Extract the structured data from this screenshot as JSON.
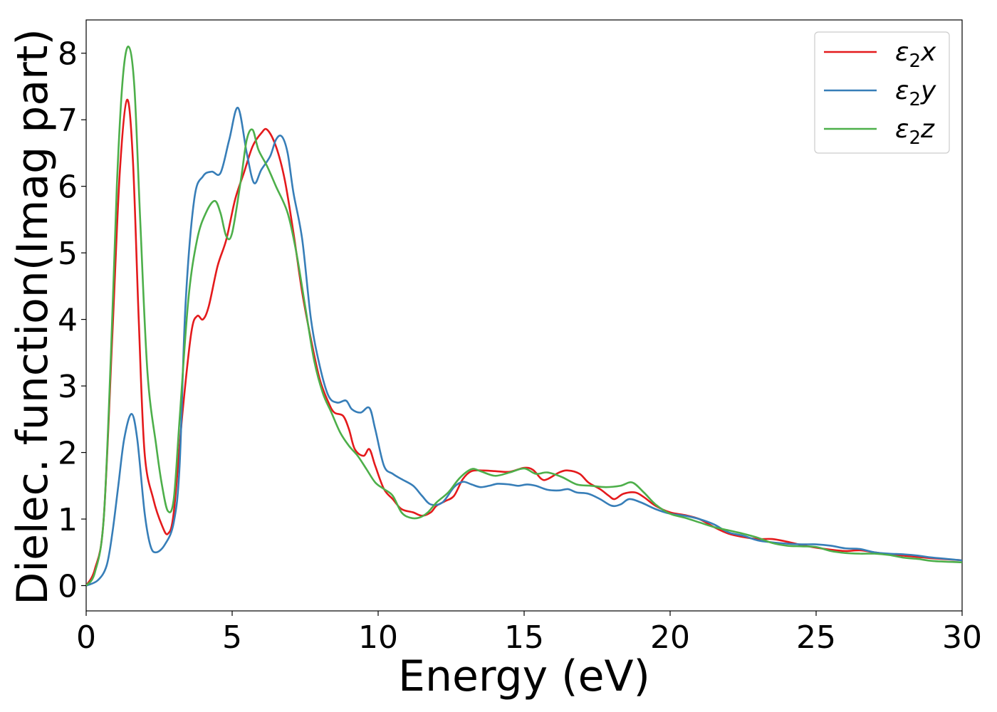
{
  "chart_data": {
    "type": "line",
    "title": "",
    "xlabel": "Energy (eV)",
    "ylabel": "Dielec. function(Imag part)",
    "xlim": [
      0,
      30
    ],
    "ylim": [
      -0.38,
      8.5
    ],
    "xticks": [
      0,
      5,
      10,
      15,
      20,
      25,
      30
    ],
    "yticks": [
      0,
      1,
      2,
      3,
      4,
      5,
      6,
      7,
      8
    ],
    "grid": false,
    "legend": "top-right",
    "series": [
      {
        "name": "ε2x",
        "label_base": "ε",
        "label_sub": "2",
        "label_suffix": "x",
        "color": "#e41a1c",
        "points": [
          [
            0,
            0
          ],
          [
            0.3,
            0.25
          ],
          [
            0.6,
            1.0
          ],
          [
            0.9,
            3.8
          ],
          [
            1.15,
            6.2
          ],
          [
            1.4,
            7.3
          ],
          [
            1.6,
            6.4
          ],
          [
            1.8,
            4.0
          ],
          [
            2.0,
            2.0
          ],
          [
            2.3,
            1.3
          ],
          [
            2.6,
            0.9
          ],
          [
            2.8,
            0.78
          ],
          [
            3.0,
            1.1
          ],
          [
            3.3,
            2.6
          ],
          [
            3.6,
            3.8
          ],
          [
            3.8,
            4.05
          ],
          [
            4.0,
            4.0
          ],
          [
            4.2,
            4.2
          ],
          [
            4.5,
            4.8
          ],
          [
            4.8,
            5.2
          ],
          [
            5.1,
            5.8
          ],
          [
            5.4,
            6.2
          ],
          [
            5.7,
            6.6
          ],
          [
            6.0,
            6.8
          ],
          [
            6.2,
            6.85
          ],
          [
            6.5,
            6.6
          ],
          [
            6.8,
            6.1
          ],
          [
            7.1,
            5.3
          ],
          [
            7.4,
            4.4
          ],
          [
            7.7,
            3.7
          ],
          [
            8.0,
            3.1
          ],
          [
            8.3,
            2.75
          ],
          [
            8.5,
            2.6
          ],
          [
            8.8,
            2.55
          ],
          [
            9.0,
            2.35
          ],
          [
            9.2,
            2.05
          ],
          [
            9.5,
            1.95
          ],
          [
            9.7,
            2.05
          ],
          [
            9.9,
            1.8
          ],
          [
            10.2,
            1.45
          ],
          [
            10.5,
            1.3
          ],
          [
            10.8,
            1.15
          ],
          [
            11.2,
            1.1
          ],
          [
            11.5,
            1.05
          ],
          [
            11.8,
            1.1
          ],
          [
            12.0,
            1.2
          ],
          [
            12.3,
            1.27
          ],
          [
            12.6,
            1.35
          ],
          [
            12.9,
            1.6
          ],
          [
            13.2,
            1.72
          ],
          [
            13.6,
            1.73
          ],
          [
            14.0,
            1.72
          ],
          [
            14.5,
            1.71
          ],
          [
            15.0,
            1.77
          ],
          [
            15.3,
            1.74
          ],
          [
            15.6,
            1.6
          ],
          [
            15.8,
            1.6
          ],
          [
            16.2,
            1.7
          ],
          [
            16.5,
            1.73
          ],
          [
            16.9,
            1.68
          ],
          [
            17.2,
            1.55
          ],
          [
            17.6,
            1.45
          ],
          [
            17.9,
            1.35
          ],
          [
            18.1,
            1.3
          ],
          [
            18.4,
            1.38
          ],
          [
            18.8,
            1.4
          ],
          [
            19.1,
            1.33
          ],
          [
            19.5,
            1.2
          ],
          [
            20.0,
            1.1
          ],
          [
            20.5,
            1.06
          ],
          [
            21.0,
            1.0
          ],
          [
            21.5,
            0.88
          ],
          [
            22.0,
            0.78
          ],
          [
            22.5,
            0.73
          ],
          [
            23.0,
            0.7
          ],
          [
            23.5,
            0.7
          ],
          [
            24.0,
            0.66
          ],
          [
            24.5,
            0.61
          ],
          [
            25.0,
            0.57
          ],
          [
            25.5,
            0.54
          ],
          [
            26.0,
            0.52
          ],
          [
            26.5,
            0.53
          ],
          [
            27.0,
            0.5
          ],
          [
            27.5,
            0.47
          ],
          [
            28.0,
            0.45
          ],
          [
            28.5,
            0.43
          ],
          [
            29.0,
            0.41
          ],
          [
            30.0,
            0.38
          ]
        ]
      },
      {
        "name": "ε2y",
        "label_base": "ε",
        "label_sub": "2",
        "label_suffix": "y",
        "color": "#377eb8",
        "points": [
          [
            0,
            0
          ],
          [
            0.4,
            0.08
          ],
          [
            0.7,
            0.3
          ],
          [
            0.9,
            0.8
          ],
          [
            1.1,
            1.5
          ],
          [
            1.3,
            2.2
          ],
          [
            1.55,
            2.58
          ],
          [
            1.75,
            2.2
          ],
          [
            2.0,
            1.1
          ],
          [
            2.2,
            0.6
          ],
          [
            2.4,
            0.5
          ],
          [
            2.7,
            0.62
          ],
          [
            3.0,
            0.95
          ],
          [
            3.2,
            1.8
          ],
          [
            3.4,
            4.2
          ],
          [
            3.7,
            5.8
          ],
          [
            4.0,
            6.15
          ],
          [
            4.3,
            6.22
          ],
          [
            4.6,
            6.2
          ],
          [
            4.9,
            6.7
          ],
          [
            5.2,
            7.18
          ],
          [
            5.5,
            6.5
          ],
          [
            5.75,
            6.05
          ],
          [
            6.0,
            6.25
          ],
          [
            6.3,
            6.45
          ],
          [
            6.5,
            6.7
          ],
          [
            6.7,
            6.75
          ],
          [
            6.9,
            6.5
          ],
          [
            7.1,
            5.9
          ],
          [
            7.4,
            5.2
          ],
          [
            7.7,
            4.0
          ],
          [
            8.0,
            3.3
          ],
          [
            8.3,
            2.85
          ],
          [
            8.6,
            2.75
          ],
          [
            8.9,
            2.78
          ],
          [
            9.1,
            2.65
          ],
          [
            9.4,
            2.6
          ],
          [
            9.7,
            2.67
          ],
          [
            9.9,
            2.35
          ],
          [
            10.2,
            1.8
          ],
          [
            10.5,
            1.68
          ],
          [
            10.8,
            1.6
          ],
          [
            11.2,
            1.5
          ],
          [
            11.5,
            1.35
          ],
          [
            11.8,
            1.22
          ],
          [
            12.2,
            1.25
          ],
          [
            12.6,
            1.48
          ],
          [
            12.9,
            1.56
          ],
          [
            13.2,
            1.52
          ],
          [
            13.5,
            1.48
          ],
          [
            13.8,
            1.5
          ],
          [
            14.1,
            1.53
          ],
          [
            14.5,
            1.52
          ],
          [
            14.8,
            1.5
          ],
          [
            15.1,
            1.52
          ],
          [
            15.4,
            1.5
          ],
          [
            15.8,
            1.44
          ],
          [
            16.2,
            1.43
          ],
          [
            16.5,
            1.45
          ],
          [
            16.8,
            1.4
          ],
          [
            17.2,
            1.38
          ],
          [
            17.6,
            1.3
          ],
          [
            18.0,
            1.2
          ],
          [
            18.3,
            1.22
          ],
          [
            18.6,
            1.3
          ],
          [
            19.0,
            1.25
          ],
          [
            19.5,
            1.15
          ],
          [
            20.0,
            1.08
          ],
          [
            20.5,
            1.05
          ],
          [
            21.0,
            1.0
          ],
          [
            21.5,
            0.92
          ],
          [
            22.0,
            0.8
          ],
          [
            22.5,
            0.75
          ],
          [
            23.0,
            0.68
          ],
          [
            23.5,
            0.65
          ],
          [
            24.0,
            0.63
          ],
          [
            24.5,
            0.62
          ],
          [
            25.0,
            0.62
          ],
          [
            25.5,
            0.6
          ],
          [
            26.0,
            0.56
          ],
          [
            26.5,
            0.55
          ],
          [
            27.0,
            0.5
          ],
          [
            27.5,
            0.48
          ],
          [
            28.0,
            0.47
          ],
          [
            28.5,
            0.45
          ],
          [
            29.0,
            0.42
          ],
          [
            30.0,
            0.38
          ]
        ]
      },
      {
        "name": "ε2z",
        "label_base": "ε",
        "label_sub": "2",
        "label_suffix": "z",
        "color": "#4daf4a",
        "points": [
          [
            0,
            0
          ],
          [
            0.3,
            0.2
          ],
          [
            0.6,
            1.0
          ],
          [
            0.85,
            3.5
          ],
          [
            1.05,
            6.0
          ],
          [
            1.25,
            7.6
          ],
          [
            1.45,
            8.1
          ],
          [
            1.65,
            7.5
          ],
          [
            1.85,
            5.5
          ],
          [
            2.1,
            3.2
          ],
          [
            2.4,
            2.1
          ],
          [
            2.6,
            1.5
          ],
          [
            2.8,
            1.12
          ],
          [
            3.0,
            1.3
          ],
          [
            3.2,
            2.5
          ],
          [
            3.5,
            4.3
          ],
          [
            3.8,
            5.2
          ],
          [
            4.1,
            5.6
          ],
          [
            4.4,
            5.78
          ],
          [
            4.6,
            5.6
          ],
          [
            4.8,
            5.25
          ],
          [
            5.0,
            5.3
          ],
          [
            5.3,
            6.1
          ],
          [
            5.5,
            6.7
          ],
          [
            5.7,
            6.85
          ],
          [
            5.9,
            6.55
          ],
          [
            6.2,
            6.3
          ],
          [
            6.5,
            6.0
          ],
          [
            6.9,
            5.6
          ],
          [
            7.2,
            5.0
          ],
          [
            7.5,
            4.2
          ],
          [
            7.8,
            3.4
          ],
          [
            8.1,
            2.9
          ],
          [
            8.4,
            2.6
          ],
          [
            8.7,
            2.3
          ],
          [
            9.0,
            2.1
          ],
          [
            9.3,
            1.95
          ],
          [
            9.6,
            1.75
          ],
          [
            9.9,
            1.55
          ],
          [
            10.2,
            1.45
          ],
          [
            10.5,
            1.35
          ],
          [
            10.8,
            1.1
          ],
          [
            11.1,
            1.02
          ],
          [
            11.4,
            1.02
          ],
          [
            11.7,
            1.1
          ],
          [
            12.0,
            1.25
          ],
          [
            12.4,
            1.4
          ],
          [
            12.8,
            1.62
          ],
          [
            13.2,
            1.75
          ],
          [
            13.5,
            1.72
          ],
          [
            14.0,
            1.65
          ],
          [
            14.5,
            1.7
          ],
          [
            15.0,
            1.76
          ],
          [
            15.4,
            1.68
          ],
          [
            15.8,
            1.7
          ],
          [
            16.3,
            1.63
          ],
          [
            16.8,
            1.52
          ],
          [
            17.3,
            1.5
          ],
          [
            17.8,
            1.48
          ],
          [
            18.3,
            1.5
          ],
          [
            18.7,
            1.55
          ],
          [
            19.1,
            1.4
          ],
          [
            19.5,
            1.22
          ],
          [
            20.0,
            1.08
          ],
          [
            20.5,
            1.02
          ],
          [
            21.0,
            0.95
          ],
          [
            21.5,
            0.88
          ],
          [
            22.0,
            0.83
          ],
          [
            22.5,
            0.78
          ],
          [
            23.0,
            0.72
          ],
          [
            23.5,
            0.64
          ],
          [
            24.0,
            0.6
          ],
          [
            24.5,
            0.59
          ],
          [
            25.0,
            0.58
          ],
          [
            25.5,
            0.52
          ],
          [
            26.0,
            0.49
          ],
          [
            26.5,
            0.48
          ],
          [
            27.0,
            0.48
          ],
          [
            27.5,
            0.46
          ],
          [
            28.0,
            0.42
          ],
          [
            28.5,
            0.4
          ],
          [
            29.0,
            0.37
          ],
          [
            30.0,
            0.35
          ]
        ]
      }
    ]
  }
}
